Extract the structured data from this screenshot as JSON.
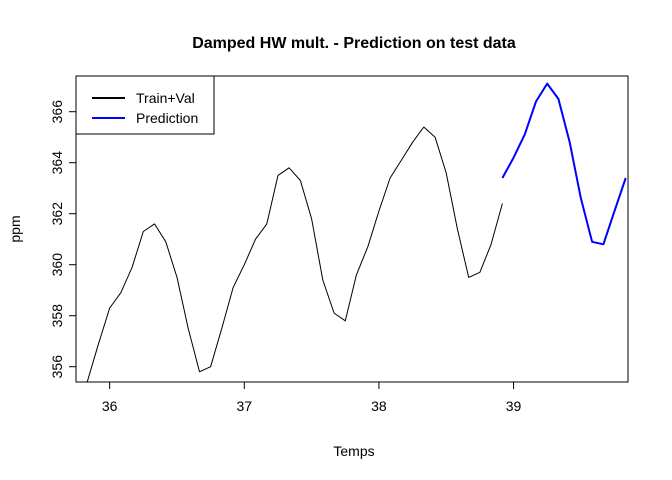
{
  "chart_data": {
    "type": "line",
    "title": "Damped HW mult. - Prediction on test data",
    "xlabel": "Temps",
    "ylabel": "ppm",
    "xlim": [
      35.75,
      39.85
    ],
    "ylim": [
      355.4,
      367.4
    ],
    "xticks": [
      36,
      37,
      38,
      39
    ],
    "yticks": [
      356,
      358,
      360,
      362,
      364,
      366
    ],
    "grid": false,
    "legend_position": "top-left",
    "series": [
      {
        "name": "Train+Val",
        "color": "#000000",
        "x": [
          35.833,
          35.917,
          36.0,
          36.083,
          36.167,
          36.25,
          36.333,
          36.417,
          36.5,
          36.583,
          36.667,
          36.75,
          36.833,
          36.917,
          37.0,
          37.083,
          37.167,
          37.25,
          37.333,
          37.417,
          37.5,
          37.583,
          37.667,
          37.75,
          37.833,
          37.917,
          38.0,
          38.083,
          38.167,
          38.25,
          38.333,
          38.417,
          38.5,
          38.583,
          38.667,
          38.75,
          38.833,
          38.917
        ],
        "y": [
          355.4,
          356.9,
          358.3,
          358.9,
          359.9,
          361.3,
          361.6,
          360.9,
          359.5,
          357.5,
          355.8,
          356.0,
          357.5,
          359.1,
          360.0,
          361.0,
          361.6,
          363.5,
          363.8,
          363.3,
          361.8,
          359.4,
          358.1,
          357.8,
          359.6,
          360.7,
          362.1,
          363.4,
          364.1,
          364.8,
          365.4,
          365.0,
          363.6,
          361.4,
          359.5,
          359.7,
          360.8,
          362.4
        ]
      },
      {
        "name": "Prediction",
        "color": "#0000ff",
        "x": [
          38.917,
          39.0,
          39.083,
          39.167,
          39.25,
          39.333,
          39.417,
          39.5,
          39.583,
          39.667,
          39.75,
          39.833
        ],
        "y": [
          363.4,
          364.2,
          365.1,
          366.4,
          367.1,
          366.5,
          364.8,
          362.6,
          360.9,
          360.8,
          362.1,
          363.4
        ]
      }
    ]
  }
}
